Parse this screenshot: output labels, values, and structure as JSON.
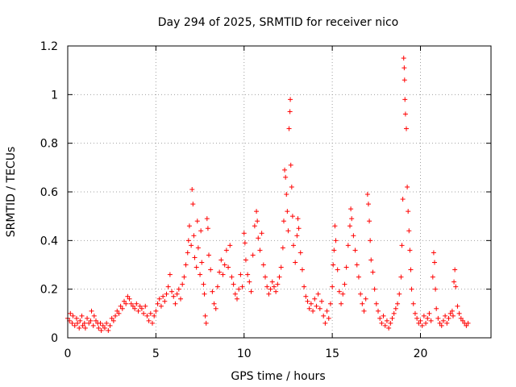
{
  "chart_data": {
    "type": "scatter",
    "title": "Day 294 of 2025, SRMTID for receiver nico",
    "xlabel": "GPS time / hours",
    "ylabel": "SRMTID / TECUs",
    "xlim": [
      0,
      24
    ],
    "ylim": [
      0,
      1.2
    ],
    "xticks": [
      0,
      5,
      10,
      15,
      20
    ],
    "xtick_labels": [
      "0",
      "5",
      "10",
      "15",
      "20"
    ],
    "yticks": [
      0,
      0.2,
      0.4,
      0.6,
      0.8,
      1,
      1.2
    ],
    "ytick_labels": [
      "0",
      "0.2",
      "0.4",
      "0.6",
      "0.8",
      "1",
      "1.2"
    ],
    "grid": true,
    "marker": "+",
    "color": "#ff0000",
    "series": [
      {
        "name": "SRMTID",
        "points": [
          [
            0.0,
            0.08
          ],
          [
            0.1,
            0.07
          ],
          [
            0.15,
            0.1
          ],
          [
            0.25,
            0.06
          ],
          [
            0.3,
            0.09
          ],
          [
            0.4,
            0.05
          ],
          [
            0.5,
            0.08
          ],
          [
            0.55,
            0.06
          ],
          [
            0.65,
            0.04
          ],
          [
            0.7,
            0.07
          ],
          [
            0.8,
            0.09
          ],
          [
            0.85,
            0.05
          ],
          [
            0.95,
            0.06
          ],
          [
            1.0,
            0.04
          ],
          [
            1.1,
            0.08
          ],
          [
            1.2,
            0.06
          ],
          [
            1.3,
            0.07
          ],
          [
            1.35,
            0.11
          ],
          [
            1.45,
            0.05
          ],
          [
            1.5,
            0.09
          ],
          [
            1.6,
            0.07
          ],
          [
            1.7,
            0.06
          ],
          [
            1.75,
            0.04
          ],
          [
            1.85,
            0.06
          ],
          [
            1.9,
            0.03
          ],
          [
            2.0,
            0.05
          ],
          [
            2.1,
            0.04
          ],
          [
            2.2,
            0.06
          ],
          [
            2.3,
            0.03
          ],
          [
            2.4,
            0.05
          ],
          [
            2.5,
            0.08
          ],
          [
            2.6,
            0.07
          ],
          [
            2.7,
            0.09
          ],
          [
            2.8,
            0.11
          ],
          [
            2.9,
            0.1
          ],
          [
            3.0,
            0.13
          ],
          [
            3.1,
            0.12
          ],
          [
            3.2,
            0.15
          ],
          [
            3.3,
            0.14
          ],
          [
            3.4,
            0.17
          ],
          [
            3.5,
            0.16
          ],
          [
            3.6,
            0.14
          ],
          [
            3.7,
            0.13
          ],
          [
            3.8,
            0.12
          ],
          [
            3.9,
            0.14
          ],
          [
            4.0,
            0.11
          ],
          [
            4.1,
            0.13
          ],
          [
            4.2,
            0.12
          ],
          [
            4.3,
            0.1
          ],
          [
            4.4,
            0.13
          ],
          [
            4.5,
            0.09
          ],
          [
            4.6,
            0.07
          ],
          [
            4.7,
            0.1
          ],
          [
            4.8,
            0.06
          ],
          [
            4.9,
            0.09
          ],
          [
            5.0,
            0.11
          ],
          [
            5.1,
            0.14
          ],
          [
            5.2,
            0.16
          ],
          [
            5.3,
            0.13
          ],
          [
            5.4,
            0.17
          ],
          [
            5.5,
            0.15
          ],
          [
            5.6,
            0.18
          ],
          [
            5.7,
            0.21
          ],
          [
            5.8,
            0.26
          ],
          [
            5.9,
            0.19
          ],
          [
            6.0,
            0.17
          ],
          [
            6.1,
            0.14
          ],
          [
            6.2,
            0.18
          ],
          [
            6.3,
            0.2
          ],
          [
            6.4,
            0.16
          ],
          [
            6.5,
            0.22
          ],
          [
            6.6,
            0.25
          ],
          [
            6.7,
            0.3
          ],
          [
            6.8,
            0.35
          ],
          [
            6.85,
            0.4
          ],
          [
            6.9,
            0.46
          ],
          [
            7.0,
            0.38
          ],
          [
            7.05,
            0.61
          ],
          [
            7.1,
            0.55
          ],
          [
            7.15,
            0.42
          ],
          [
            7.2,
            0.33
          ],
          [
            7.3,
            0.29
          ],
          [
            7.35,
            0.48
          ],
          [
            7.4,
            0.37
          ],
          [
            7.5,
            0.26
          ],
          [
            7.55,
            0.44
          ],
          [
            7.6,
            0.31
          ],
          [
            7.7,
            0.22
          ],
          [
            7.75,
            0.18
          ],
          [
            7.8,
            0.09
          ],
          [
            7.85,
            0.06
          ],
          [
            7.9,
            0.49
          ],
          [
            7.95,
            0.45
          ],
          [
            8.0,
            0.34
          ],
          [
            8.1,
            0.28
          ],
          [
            8.2,
            0.19
          ],
          [
            8.3,
            0.14
          ],
          [
            8.4,
            0.12
          ],
          [
            8.5,
            0.21
          ],
          [
            8.6,
            0.27
          ],
          [
            8.7,
            0.32
          ],
          [
            8.8,
            0.26
          ],
          [
            8.9,
            0.3
          ],
          [
            9.0,
            0.36
          ],
          [
            9.1,
            0.29
          ],
          [
            9.2,
            0.38
          ],
          [
            9.3,
            0.25
          ],
          [
            9.4,
            0.22
          ],
          [
            9.5,
            0.18
          ],
          [
            9.6,
            0.16
          ],
          [
            9.7,
            0.2
          ],
          [
            9.8,
            0.26
          ],
          [
            9.9,
            0.21
          ],
          [
            10.0,
            0.43
          ],
          [
            10.05,
            0.39
          ],
          [
            10.1,
            0.32
          ],
          [
            10.2,
            0.26
          ],
          [
            10.3,
            0.23
          ],
          [
            10.4,
            0.19
          ],
          [
            10.5,
            0.34
          ],
          [
            10.6,
            0.46
          ],
          [
            10.7,
            0.52
          ],
          [
            10.75,
            0.48
          ],
          [
            10.8,
            0.41
          ],
          [
            10.9,
            0.36
          ],
          [
            11.0,
            0.43
          ],
          [
            11.1,
            0.3
          ],
          [
            11.2,
            0.25
          ],
          [
            11.3,
            0.21
          ],
          [
            11.4,
            0.18
          ],
          [
            11.5,
            0.2
          ],
          [
            11.6,
            0.23
          ],
          [
            11.7,
            0.21
          ],
          [
            11.8,
            0.19
          ],
          [
            11.9,
            0.22
          ],
          [
            12.0,
            0.25
          ],
          [
            12.1,
            0.29
          ],
          [
            12.2,
            0.37
          ],
          [
            12.25,
            0.48
          ],
          [
            12.3,
            0.69
          ],
          [
            12.35,
            0.66
          ],
          [
            12.4,
            0.59
          ],
          [
            12.45,
            0.52
          ],
          [
            12.5,
            0.44
          ],
          [
            12.55,
            0.86
          ],
          [
            12.6,
            0.93
          ],
          [
            12.62,
            0.98
          ],
          [
            12.65,
            0.71
          ],
          [
            12.7,
            0.62
          ],
          [
            12.75,
            0.5
          ],
          [
            12.8,
            0.38
          ],
          [
            12.9,
            0.31
          ],
          [
            13.0,
            0.42
          ],
          [
            13.05,
            0.49
          ],
          [
            13.1,
            0.45
          ],
          [
            13.2,
            0.35
          ],
          [
            13.3,
            0.28
          ],
          [
            13.4,
            0.21
          ],
          [
            13.5,
            0.17
          ],
          [
            13.6,
            0.15
          ],
          [
            13.7,
            0.12
          ],
          [
            13.8,
            0.14
          ],
          [
            13.9,
            0.11
          ],
          [
            14.0,
            0.16
          ],
          [
            14.1,
            0.13
          ],
          [
            14.2,
            0.18
          ],
          [
            14.3,
            0.12
          ],
          [
            14.4,
            0.15
          ],
          [
            14.5,
            0.09
          ],
          [
            14.6,
            0.06
          ],
          [
            14.7,
            0.11
          ],
          [
            14.8,
            0.08
          ],
          [
            14.9,
            0.14
          ],
          [
            15.0,
            0.21
          ],
          [
            15.05,
            0.3
          ],
          [
            15.1,
            0.36
          ],
          [
            15.15,
            0.46
          ],
          [
            15.2,
            0.4
          ],
          [
            15.3,
            0.28
          ],
          [
            15.4,
            0.19
          ],
          [
            15.5,
            0.14
          ],
          [
            15.6,
            0.18
          ],
          [
            15.7,
            0.22
          ],
          [
            15.8,
            0.29
          ],
          [
            15.9,
            0.38
          ],
          [
            16.0,
            0.46
          ],
          [
            16.05,
            0.53
          ],
          [
            16.1,
            0.49
          ],
          [
            16.2,
            0.42
          ],
          [
            16.3,
            0.36
          ],
          [
            16.4,
            0.3
          ],
          [
            16.5,
            0.25
          ],
          [
            16.6,
            0.18
          ],
          [
            16.7,
            0.14
          ],
          [
            16.8,
            0.11
          ],
          [
            16.9,
            0.16
          ],
          [
            17.0,
            0.59
          ],
          [
            17.05,
            0.55
          ],
          [
            17.1,
            0.48
          ],
          [
            17.15,
            0.4
          ],
          [
            17.2,
            0.32
          ],
          [
            17.3,
            0.27
          ],
          [
            17.4,
            0.2
          ],
          [
            17.5,
            0.14
          ],
          [
            17.6,
            0.11
          ],
          [
            17.7,
            0.08
          ],
          [
            17.8,
            0.06
          ],
          [
            17.9,
            0.09
          ],
          [
            18.0,
            0.05
          ],
          [
            18.1,
            0.07
          ],
          [
            18.2,
            0.04
          ],
          [
            18.3,
            0.06
          ],
          [
            18.4,
            0.08
          ],
          [
            18.5,
            0.1
          ],
          [
            18.6,
            0.12
          ],
          [
            18.7,
            0.14
          ],
          [
            18.8,
            0.18
          ],
          [
            18.9,
            0.25
          ],
          [
            18.95,
            0.38
          ],
          [
            19.0,
            0.57
          ],
          [
            19.05,
            1.15
          ],
          [
            19.08,
            1.11
          ],
          [
            19.1,
            1.06
          ],
          [
            19.12,
            0.98
          ],
          [
            19.15,
            0.92
          ],
          [
            19.2,
            0.86
          ],
          [
            19.25,
            0.62
          ],
          [
            19.3,
            0.52
          ],
          [
            19.35,
            0.44
          ],
          [
            19.4,
            0.36
          ],
          [
            19.45,
            0.28
          ],
          [
            19.5,
            0.2
          ],
          [
            19.6,
            0.14
          ],
          [
            19.7,
            0.1
          ],
          [
            19.8,
            0.08
          ],
          [
            19.9,
            0.06
          ],
          [
            20.0,
            0.07
          ],
          [
            20.1,
            0.05
          ],
          [
            20.2,
            0.09
          ],
          [
            20.3,
            0.06
          ],
          [
            20.4,
            0.08
          ],
          [
            20.5,
            0.1
          ],
          [
            20.6,
            0.07
          ],
          [
            20.7,
            0.25
          ],
          [
            20.75,
            0.35
          ],
          [
            20.8,
            0.31
          ],
          [
            20.85,
            0.2
          ],
          [
            20.9,
            0.12
          ],
          [
            21.0,
            0.08
          ],
          [
            21.1,
            0.06
          ],
          [
            21.2,
            0.05
          ],
          [
            21.3,
            0.07
          ],
          [
            21.4,
            0.09
          ],
          [
            21.5,
            0.06
          ],
          [
            21.6,
            0.08
          ],
          [
            21.7,
            0.1
          ],
          [
            21.8,
            0.11
          ],
          [
            21.85,
            0.09
          ],
          [
            21.9,
            0.23
          ],
          [
            21.95,
            0.28
          ],
          [
            22.0,
            0.21
          ],
          [
            22.1,
            0.13
          ],
          [
            22.2,
            0.1
          ],
          [
            22.3,
            0.08
          ],
          [
            22.4,
            0.07
          ],
          [
            22.5,
            0.06
          ],
          [
            22.6,
            0.05
          ],
          [
            22.7,
            0.06
          ]
        ]
      }
    ]
  }
}
